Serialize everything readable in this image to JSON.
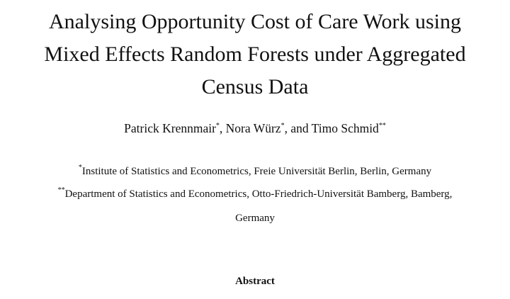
{
  "title": {
    "lines": [
      "Analysing Opportunity Cost of Care Work using",
      "Mixed Effects Random Forests under Aggregated",
      "Census Data"
    ]
  },
  "authors": {
    "people": [
      {
        "name": "Patrick Krennmair",
        "mark": "*"
      },
      {
        "name": "Nora Würz",
        "mark": "*"
      },
      {
        "name": "Timo Schmid",
        "mark": "**"
      }
    ],
    "separators": [
      ", ",
      ", and "
    ]
  },
  "affiliations": [
    {
      "mark": "*",
      "lines": [
        "Institute of Statistics and Econometrics, Freie Universität Berlin, Berlin, Germany"
      ]
    },
    {
      "mark": "**",
      "lines": [
        "Department of Statistics and Econometrics, Otto-Friedrich-Universität Bamberg, Bamberg,",
        "Germany"
      ]
    }
  ],
  "abstract": {
    "heading": "Abstract"
  }
}
